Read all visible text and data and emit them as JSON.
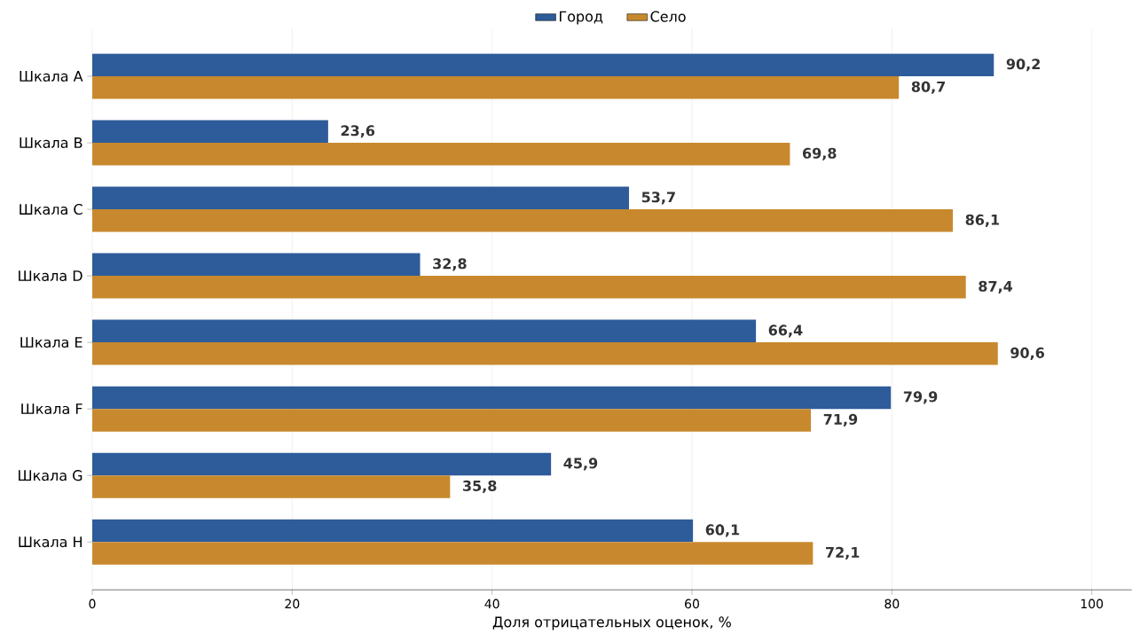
{
  "chart_data": {
    "type": "bar",
    "orientation": "horizontal",
    "xlabel": "Доля отрицательных оценок, %",
    "categories": [
      "Шкала A",
      "Шкала B",
      "Шкала C",
      "Шкала D",
      "Шкала E",
      "Шкала F",
      "Шкала G",
      "Шкала H"
    ],
    "series": [
      {
        "name": "Город",
        "color": "#2e5c9a",
        "values": [
          90.2,
          23.6,
          53.7,
          32.8,
          66.4,
          79.9,
          45.9,
          60.1
        ],
        "value_labels": [
          "90,2",
          "23,6",
          "53,7",
          "32,8",
          "66,4",
          "79,9",
          "45,9",
          "60,1"
        ]
      },
      {
        "name": "Село",
        "color": "#c8892e",
        "values": [
          80.7,
          69.8,
          86.1,
          87.4,
          90.6,
          71.9,
          35.8,
          72.1
        ],
        "value_labels": [
          "80,7",
          "69,8",
          "86,1",
          "87,4",
          "90,6",
          "71,9",
          "35,8",
          "72,1"
        ]
      }
    ],
    "xlim": [
      0,
      104
    ],
    "xticks": [
      0,
      20,
      40,
      60,
      80,
      100
    ],
    "grid": "x",
    "legend": "top"
  }
}
